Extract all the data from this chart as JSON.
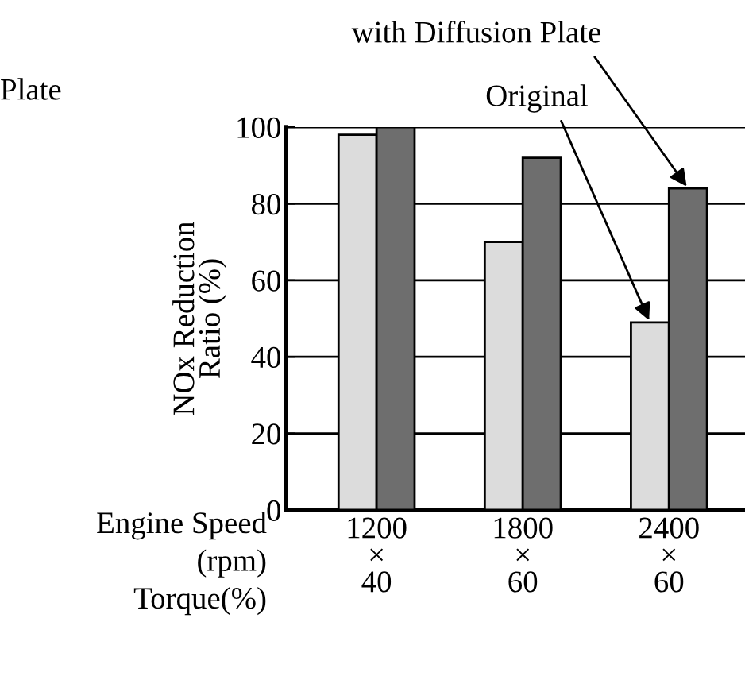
{
  "chart_data": {
    "type": "bar",
    "categories": [
      "1200\n×\n40",
      "1800\n×\n60",
      "2400\n×\n60"
    ],
    "xlabel": "Engine Speed\n(rpm)\nTorque(%)",
    "ylabel": "NOx Reduction\nRatio (%)",
    "series": [
      {
        "name": "Original",
        "color": "#dcdcdc",
        "values": [
          98,
          70,
          49
        ]
      },
      {
        "name": "with Diffusion Plate",
        "color": "#6e6e6e",
        "values": [
          100,
          92,
          84
        ]
      }
    ],
    "ylim": [
      0,
      100
    ],
    "yticks": [
      0,
      20,
      40,
      60,
      80,
      100
    ],
    "grid": "y",
    "legend": false,
    "annotations": [
      "Plate"
    ]
  }
}
